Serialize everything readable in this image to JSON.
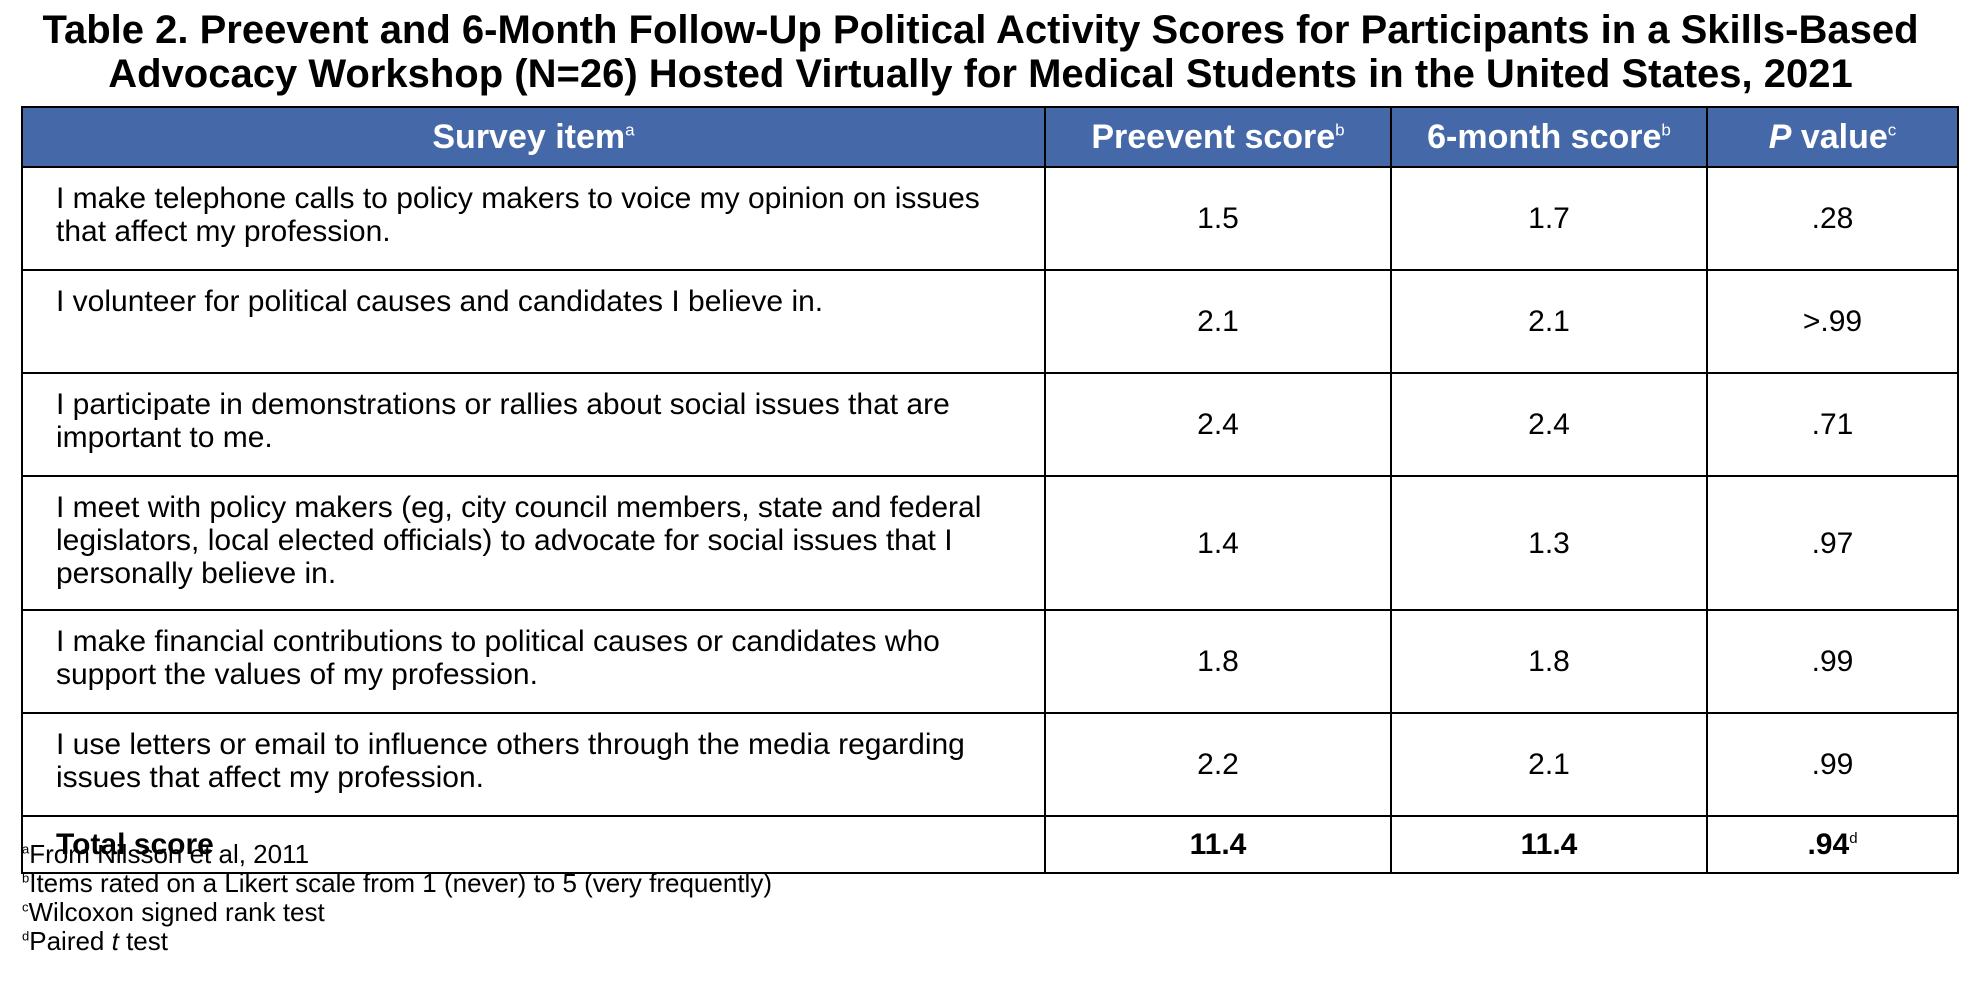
{
  "title": {
    "line1": "Table 2. Preevent and 6-Month Follow-Up Political Activity Scores for Participants in a Skills-Based",
    "line2": "Advocacy Workshop (N=26) Hosted Virtually for Medical Students in the United States, 2021"
  },
  "header": {
    "item": "Survey item",
    "item_sup": "a",
    "pre": "Preevent score",
    "pre_sup": "b",
    "six": "6-month score",
    "six_sup": "b",
    "p_italic": "P",
    "p_rest": " value",
    "p_sup": "c"
  },
  "rows": [
    {
      "item": "I make telephone calls to policy makers to voice my opinion on issues that affect my profession.",
      "pre": "1.5",
      "six": "1.7",
      "p": ".28"
    },
    {
      "item": "I volunteer for political causes and candidates I believe in.",
      "pre": "2.1",
      "six": "2.1",
      "p": ">.99"
    },
    {
      "item": "I participate in demonstrations or rallies about social issues that are important to me.",
      "pre": "2.4",
      "six": "2.4",
      "p": ".71"
    },
    {
      "item": "I meet with policy makers (eg, city council members, state and federal legislators, local elected officials) to advocate for social issues that I personally believe in.",
      "pre": "1.4",
      "six": "1.3",
      "p": ".97"
    },
    {
      "item": "I make financial contributions to political causes or candidates who support the values of my profession.",
      "pre": "1.8",
      "six": "1.8",
      "p": ".99"
    },
    {
      "item": "I use letters or email to influence others through the media regarding issues that affect my profession.",
      "pre": "2.2",
      "six": "2.1",
      "p": ".99"
    }
  ],
  "total": {
    "label": "Total score",
    "pre": "11.4",
    "six": "11.4",
    "p": ".94",
    "p_sup": "d"
  },
  "notes": {
    "a_mark": "a",
    "a_text": "From Nilsson et al, 2011",
    "b_mark": "b",
    "b_text": "Items rated on a Likert scale from 1 (never) to 5 (very frequently)",
    "c_mark": "c",
    "c_text": "Wilcoxon signed rank test",
    "d_mark": "d",
    "d_text_pre": "Paired ",
    "d_text_ital": "t",
    "d_text_post": " test"
  },
  "colors": {
    "header_bg": "#4568a8",
    "header_text": "#ffffff",
    "border": "#000000"
  }
}
